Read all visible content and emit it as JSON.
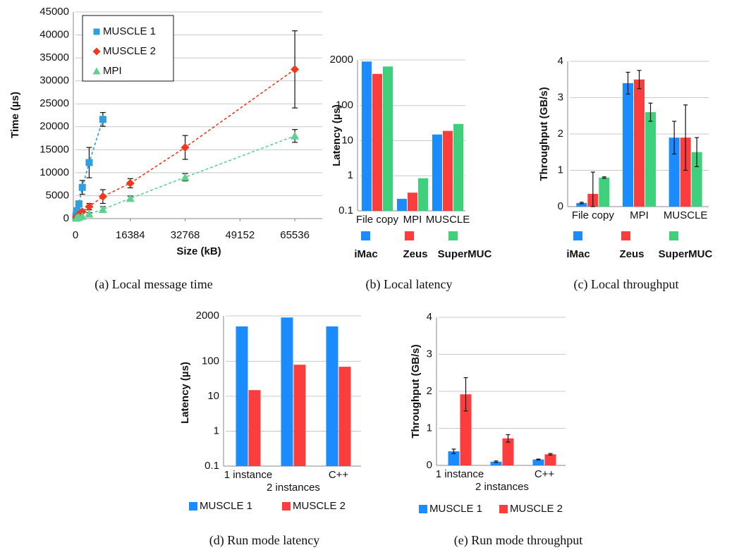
{
  "chart_data": [
    {
      "type": "scatter",
      "caption": "(a) Local message time",
      "x_label": "Size (kB)",
      "y_label": "Time (µs)",
      "xlim": [
        0,
        73728
      ],
      "xticks": [
        0,
        16384,
        32768,
        49152,
        65536
      ],
      "ylim": [
        0,
        45000
      ],
      "yticks": [
        0,
        5000,
        10000,
        15000,
        20000,
        25000,
        30000,
        35000,
        40000,
        45000
      ],
      "grid": true,
      "legend": "upper left",
      "line_style": "dashed",
      "series": [
        {
          "name": "MUSCLE 1",
          "color": "#2f9fe0",
          "marker": "square",
          "x": [
            128,
            256,
            512,
            1024,
            2048,
            4096,
            8192
          ],
          "values": [
            400,
            900,
            1700,
            3200,
            6800,
            12200,
            21600
          ],
          "errors": [
            null,
            null,
            null,
            null,
            1500,
            3300,
            1500
          ]
        },
        {
          "name": "MUSCLE 2",
          "color": "#f0381c",
          "marker": "diamond",
          "x": [
            256,
            512,
            1024,
            2048,
            4096,
            8192,
            16384,
            32768,
            65536
          ],
          "values": [
            300,
            500,
            900,
            1500,
            2600,
            4800,
            7700,
            15500,
            32500
          ],
          "errors": [
            null,
            null,
            null,
            null,
            700,
            1500,
            1000,
            2600,
            8400
          ]
        },
        {
          "name": "MPI",
          "color": "#5fd08f",
          "marker": "triangle",
          "x": [
            256,
            512,
            1024,
            2048,
            4096,
            8192,
            16384,
            32768,
            65536
          ],
          "values": [
            100,
            200,
            300,
            500,
            1000,
            2000,
            4400,
            9000,
            18000
          ],
          "errors": [
            null,
            null,
            null,
            null,
            300,
            600,
            500,
            800,
            1400
          ]
        }
      ]
    },
    {
      "type": "bar",
      "caption": "(b) Local latency",
      "y_label": "Latency (µs)",
      "log_scale": true,
      "ylim": [
        0.1,
        2000
      ],
      "yticks": [
        0.1,
        1,
        10,
        100,
        2000
      ],
      "grid": true,
      "legend": "bottom",
      "categories": [
        "File copy",
        "MPI",
        "MUSCLE"
      ],
      "series": [
        {
          "name": "iMac",
          "color": "#1a8cff",
          "values": [
            1800,
            0.22,
            15
          ]
        },
        {
          "name": "Zeus",
          "color": "#fc3d3d",
          "values": [
            800,
            0.33,
            19
          ]
        },
        {
          "name": "SuperMUC",
          "color": "#3ed07a",
          "values": [
            1300,
            0.85,
            30
          ]
        }
      ]
    },
    {
      "type": "bar",
      "caption": "(c) Local throughput",
      "y_label": "Throughput (GB/s)",
      "ylim": [
        0,
        4
      ],
      "yticks": [
        0,
        1,
        2,
        3,
        4
      ],
      "grid": true,
      "legend": "bottom",
      "categories": [
        "File copy",
        "MPI",
        "MUSCLE"
      ],
      "series": [
        {
          "name": "iMac",
          "color": "#1a8cff",
          "values": [
            0.1,
            3.4,
            1.9
          ],
          "errors": [
            0.02,
            0.3,
            0.45
          ]
        },
        {
          "name": "Zeus",
          "color": "#fc3d3d",
          "values": [
            0.35,
            3.5,
            1.9
          ],
          "errors": [
            0.6,
            0.25,
            0.9
          ]
        },
        {
          "name": "SuperMUC",
          "color": "#3ed07a",
          "values": [
            0.8,
            2.6,
            1.5
          ],
          "errors": [
            0.02,
            0.25,
            0.4
          ]
        }
      ]
    },
    {
      "type": "bar",
      "caption": "(d) Run mode latency",
      "y_label": "Latency (µs)",
      "log_scale": true,
      "ylim": [
        0.1,
        2000
      ],
      "yticks": [
        0.1,
        1,
        10,
        100,
        2000
      ],
      "grid": true,
      "legend": "bottom",
      "categories": [
        "1 instance",
        "2 instances",
        "C++"
      ],
      "series": [
        {
          "name": "MUSCLE 1",
          "color": "#1a8cff",
          "values": [
            1000,
            1800,
            1000
          ]
        },
        {
          "name": "MUSCLE 2",
          "color": "#fc3d3d",
          "values": [
            15,
            80,
            70
          ]
        }
      ]
    },
    {
      "type": "bar",
      "caption": "(e) Run mode throughput",
      "y_label": "Throughput (GB/s)",
      "ylim": [
        0,
        4
      ],
      "yticks": [
        0,
        1,
        2,
        3,
        4
      ],
      "grid": true,
      "legend": "bottom",
      "categories": [
        "1 instance",
        "2 instances",
        "C++"
      ],
      "series": [
        {
          "name": "MUSCLE 1",
          "color": "#1a8cff",
          "values": [
            0.38,
            0.1,
            0.16
          ],
          "errors": [
            0.06,
            0.02,
            0.01
          ]
        },
        {
          "name": "MUSCLE 2",
          "color": "#fc3d3d",
          "values": [
            1.92,
            0.73,
            0.3
          ],
          "errors": [
            0.45,
            0.1,
            0.02
          ]
        }
      ]
    }
  ]
}
